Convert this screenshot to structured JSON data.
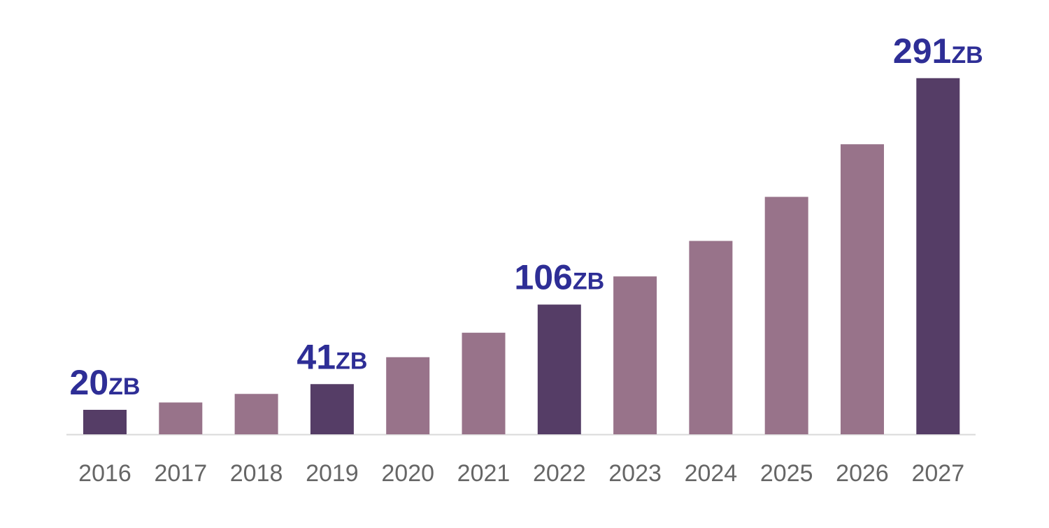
{
  "chart_data": {
    "type": "bar",
    "title": "",
    "xlabel": "",
    "ylabel": "",
    "ylim": [
      0,
      300
    ],
    "grid": false,
    "categories": [
      "2016",
      "2017",
      "2018",
      "2019",
      "2020",
      "2021",
      "2022",
      "2023",
      "2024",
      "2025",
      "2026",
      "2027"
    ],
    "values": [
      20,
      26,
      33,
      41,
      63,
      83,
      106,
      129,
      158,
      194,
      237,
      291
    ],
    "highlighted": [
      true,
      false,
      false,
      true,
      false,
      false,
      true,
      false,
      false,
      false,
      false,
      true
    ],
    "data_labels": [
      {
        "category": "2016",
        "value": "20",
        "unit": "ZB"
      },
      {
        "category": "2019",
        "value": "41",
        "unit": "ZB"
      },
      {
        "category": "2022",
        "value": "106",
        "unit": "ZB"
      },
      {
        "category": "2027",
        "value": "291",
        "unit": "ZB"
      }
    ],
    "colors": {
      "highlight": "#553d66",
      "normal": "#98738a",
      "label": "#2e2e96",
      "axis": "#d9d9d9",
      "tick_label": "#666666"
    }
  }
}
